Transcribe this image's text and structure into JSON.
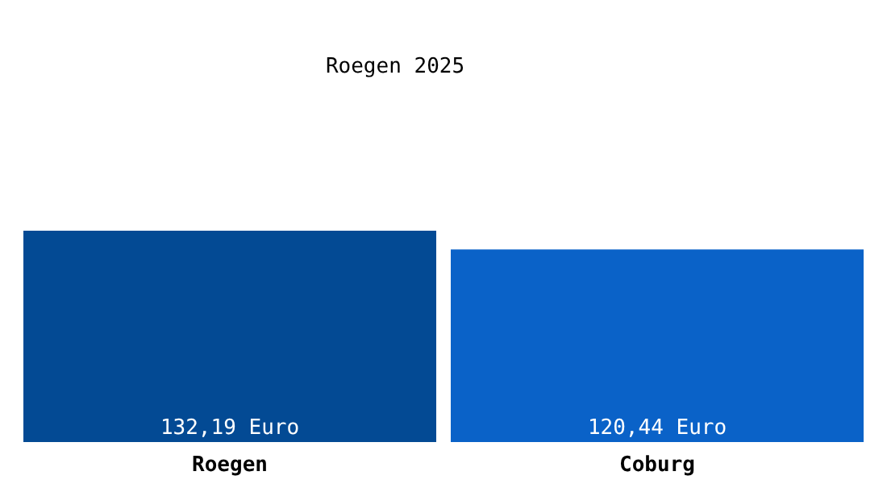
{
  "chart_data": {
    "type": "bar",
    "title": "Roegen 2025",
    "categories": [
      "Roegen",
      "Coburg"
    ],
    "values": [
      132.19,
      120.44
    ],
    "value_labels": [
      "132,19 Euro",
      "120,44 Euro"
    ],
    "colors": [
      "#034a94",
      "#0a62c8"
    ]
  }
}
